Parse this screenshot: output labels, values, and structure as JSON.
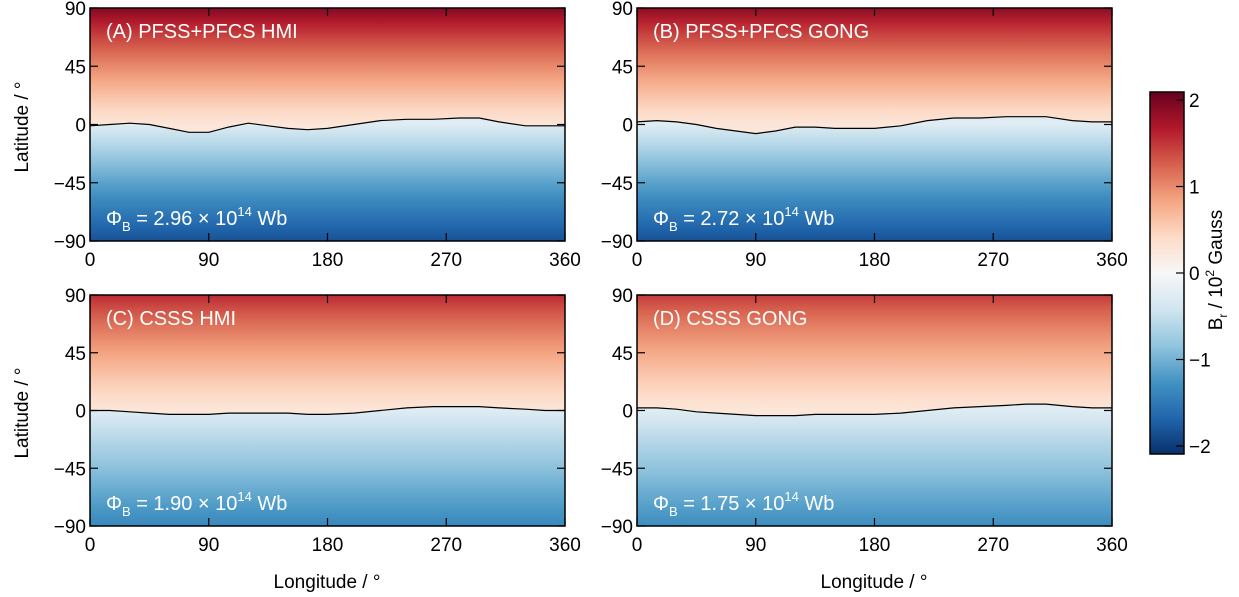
{
  "figure": {
    "colorbar": {
      "label_main": "B",
      "label_sub": "r",
      "label_rest": " / 10",
      "label_sup": "2",
      "label_unit": " Gauss",
      "ticks": [
        2,
        1,
        0,
        -1,
        -2
      ],
      "range": [
        -2,
        2
      ],
      "colors": [
        "#08306b",
        "#2166ac",
        "#4393c3",
        "#92c5de",
        "#d1e5f0",
        "#f7f7f7",
        "#fddbc7",
        "#f4a582",
        "#d6604d",
        "#b2182b",
        "#67001f"
      ]
    },
    "x_axis_label": "Longitude / °",
    "y_axis_label": "Latitude / °",
    "x_ticks": [
      0,
      90,
      180,
      270,
      360
    ],
    "y_ticks": [
      90,
      45,
      0,
      -45,
      -90
    ]
  },
  "chart_data": [
    {
      "type": "heatmap",
      "title": "(A) PFSS+PFCS HMI",
      "flux": {
        "prefix": "Φ",
        "sub": "B",
        "mid": " = 2.96 × 10",
        "sup": "14",
        "suffix": " Wb"
      },
      "xlim": [
        0,
        360
      ],
      "ylim": [
        -90,
        90
      ],
      "field_range": [
        -2,
        2
      ],
      "field_top": 1.85,
      "field_bottom": -1.75,
      "neutral_line": {
        "lon": [
          0,
          15,
          30,
          45,
          60,
          75,
          90,
          105,
          120,
          135,
          150,
          165,
          180,
          200,
          220,
          240,
          260,
          280,
          295,
          310,
          330,
          345,
          360
        ],
        "lat": [
          -1,
          0,
          1,
          0,
          -3,
          -6,
          -6,
          -2,
          1,
          -1,
          -3,
          -4,
          -3,
          0,
          3,
          4,
          4,
          5,
          5,
          2,
          -1,
          -1,
          -1
        ]
      }
    },
    {
      "type": "heatmap",
      "title": "(B) PFSS+PFCS GONG",
      "flux": {
        "prefix": "Φ",
        "sub": "B",
        "mid": " = 2.72 × 10",
        "sup": "14",
        "suffix": " Wb"
      },
      "xlim": [
        0,
        360
      ],
      "ylim": [
        -90,
        90
      ],
      "field_range": [
        -2,
        2
      ],
      "field_top": 1.8,
      "field_bottom": -1.75,
      "neutral_line": {
        "lon": [
          0,
          15,
          30,
          45,
          60,
          75,
          90,
          105,
          120,
          135,
          150,
          165,
          180,
          200,
          220,
          240,
          260,
          280,
          295,
          310,
          330,
          345,
          360
        ],
        "lat": [
          2,
          3,
          2,
          0,
          -3,
          -5,
          -7,
          -5,
          -2,
          -2,
          -3,
          -3,
          -3,
          -1,
          3,
          5,
          5,
          6,
          6,
          6,
          3,
          2,
          2
        ]
      }
    },
    {
      "type": "heatmap",
      "title": "(C) CSSS HMI",
      "flux": {
        "prefix": "Φ",
        "sub": "B",
        "mid": " = 1.90 × 10",
        "sup": "14",
        "suffix": " Wb"
      },
      "xlim": [
        0,
        360
      ],
      "ylim": [
        -90,
        90
      ],
      "field_range": [
        -2,
        2
      ],
      "field_top": 1.5,
      "field_bottom": -1.3,
      "neutral_line": {
        "lon": [
          0,
          15,
          30,
          45,
          60,
          75,
          90,
          105,
          120,
          135,
          150,
          165,
          180,
          200,
          220,
          240,
          260,
          280,
          295,
          310,
          330,
          345,
          360
        ],
        "lat": [
          0,
          0,
          -1,
          -2,
          -3,
          -3,
          -3,
          -2,
          -2,
          -2,
          -2,
          -3,
          -3,
          -2,
          0,
          2,
          3,
          3,
          3,
          2,
          1,
          0,
          0
        ]
      }
    },
    {
      "type": "heatmap",
      "title": "(D) CSSS GONG",
      "flux": {
        "prefix": "Φ",
        "sub": "B",
        "mid": " = 1.75 × 10",
        "sup": "14",
        "suffix": " Wb"
      },
      "xlim": [
        0,
        360
      ],
      "ylim": [
        -90,
        90
      ],
      "field_range": [
        -2,
        2
      ],
      "field_top": 1.4,
      "field_bottom": -1.25,
      "neutral_line": {
        "lon": [
          0,
          15,
          30,
          45,
          60,
          75,
          90,
          105,
          120,
          135,
          150,
          165,
          180,
          200,
          220,
          240,
          260,
          280,
          295,
          310,
          330,
          345,
          360
        ],
        "lat": [
          2,
          2,
          1,
          -1,
          -2,
          -3,
          -4,
          -4,
          -4,
          -3,
          -3,
          -3,
          -3,
          -2,
          0,
          2,
          3,
          4,
          5,
          5,
          3,
          2,
          2
        ]
      }
    }
  ]
}
